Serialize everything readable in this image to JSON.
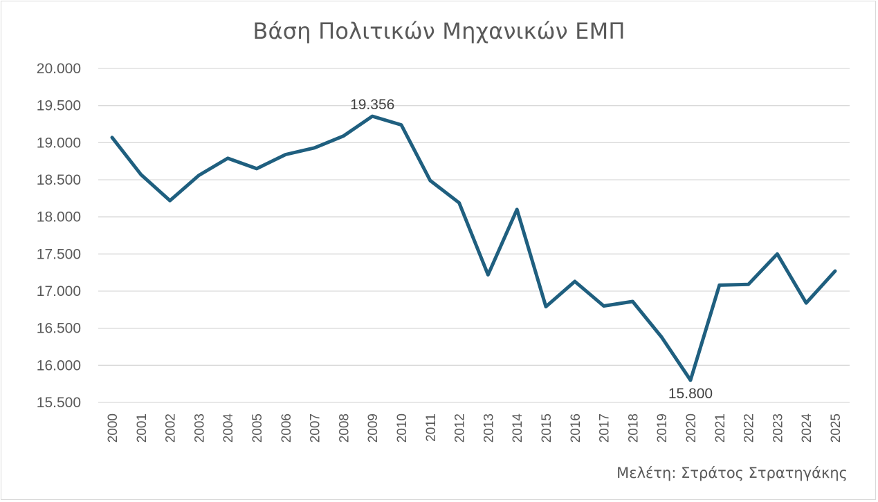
{
  "title": "Βάση Πολιτικών Μηχανικών ΕΜΠ",
  "credit": "Μελέτη: Στράτος Στρατηγάκης",
  "colors": {
    "line": "#1f5f7f",
    "grid": "#d9d9d9",
    "text": "#595959"
  },
  "chart_data": {
    "type": "line",
    "title": "Βάση Πολιτικών Μηχανικών ΕΜΠ",
    "xlabel": "",
    "ylabel": "",
    "categories": [
      "2000",
      "2001",
      "2002",
      "2003",
      "2004",
      "2005",
      "2006",
      "2007",
      "2008",
      "2009",
      "2010",
      "2011",
      "2012",
      "2013",
      "2014",
      "2015",
      "2016",
      "2017",
      "2018",
      "2019",
      "2020",
      "2021",
      "2022",
      "2023",
      "2024",
      "2025"
    ],
    "series": [
      {
        "values": [
          19070,
          18570,
          18220,
          18560,
          18790,
          18650,
          18840,
          18930,
          19090,
          19356,
          19240,
          18490,
          18190,
          17220,
          18100,
          16790,
          17130,
          16800,
          16860,
          16380,
          15800,
          17080,
          17090,
          17500,
          16840,
          17270
        ]
      }
    ],
    "ylim": [
      15500,
      20000
    ],
    "yticks": [
      "15.500",
      "16.000",
      "16.500",
      "17.000",
      "17.500",
      "18.000",
      "18.500",
      "19.000",
      "19.500",
      "20.000"
    ],
    "ytick_values": [
      15500,
      16000,
      16500,
      17000,
      17500,
      18000,
      18500,
      19000,
      19500,
      20000
    ],
    "data_labels": [
      {
        "category": "2009",
        "text": "19.356",
        "position": "above"
      },
      {
        "category": "2020",
        "text": "15.800",
        "position": "below"
      }
    ],
    "grid": true,
    "legend": "none"
  }
}
